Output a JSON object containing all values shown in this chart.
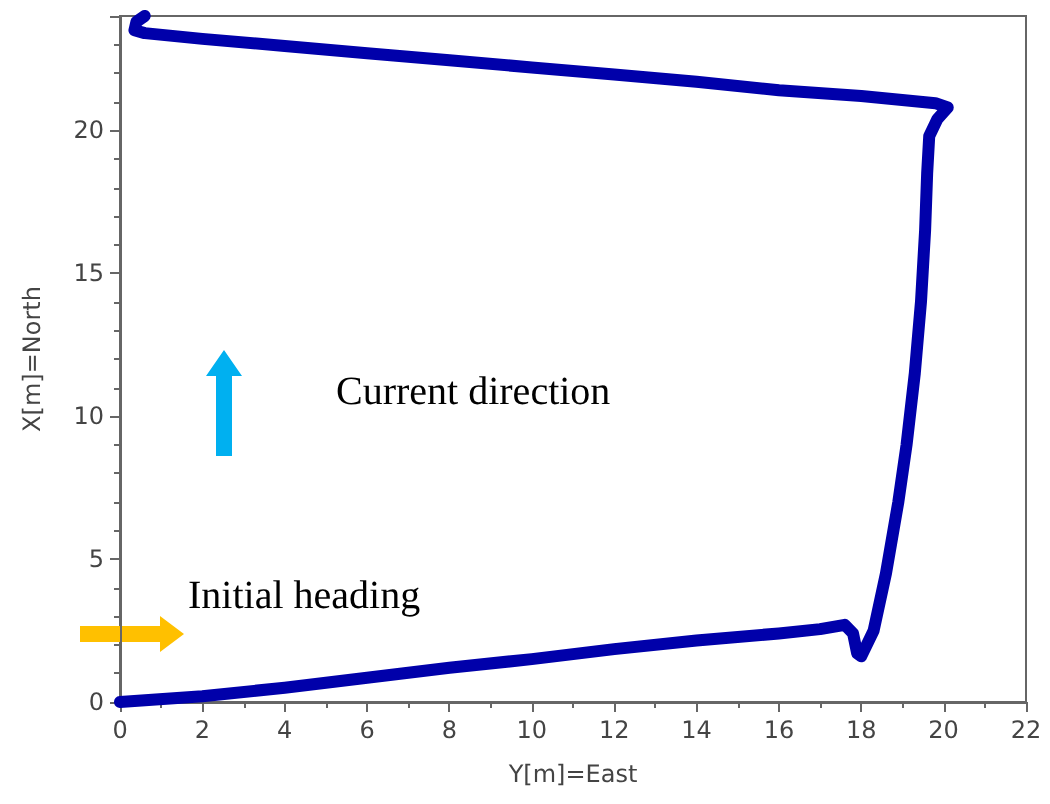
{
  "chart_data": {
    "type": "line",
    "xlabel": "Y[m]=East",
    "ylabel": "X[m]=North",
    "annotations": [
      "Current direction",
      "Initial heading"
    ],
    "xlim": [
      0,
      22
    ],
    "ylim": [
      0,
      24
    ],
    "xticks": [
      0,
      2,
      4,
      6,
      8,
      10,
      12,
      14,
      16,
      18,
      20,
      22
    ],
    "yticks": [
      0,
      5,
      10,
      15,
      20
    ],
    "grid": false,
    "marker": "none",
    "line_style": "solid",
    "series": [
      {
        "color": "#0000aa",
        "x": [
          0,
          2,
          4,
          6,
          8,
          10,
          12,
          14,
          16,
          17,
          17.6,
          17.8,
          17.9,
          18,
          18.3,
          18.6,
          18.9,
          19.1,
          19.3,
          19.45,
          19.55,
          19.6,
          19.65,
          19.85,
          20.1,
          19.8,
          18,
          16,
          14,
          12,
          10,
          8,
          6,
          4,
          2,
          0.6,
          0.35,
          0.4,
          0.6
        ],
        "values": [
          0,
          0.2,
          0.5,
          0.85,
          1.2,
          1.5,
          1.85,
          2.15,
          2.4,
          2.55,
          2.7,
          2.4,
          1.7,
          1.6,
          2.5,
          4.5,
          7,
          9,
          11.5,
          14,
          16.5,
          18.5,
          19.8,
          20.4,
          20.8,
          20.95,
          21.2,
          21.4,
          21.7,
          21.95,
          22.2,
          22.45,
          22.7,
          22.95,
          23.2,
          23.4,
          23.5,
          23.8,
          24
        ]
      }
    ]
  }
}
